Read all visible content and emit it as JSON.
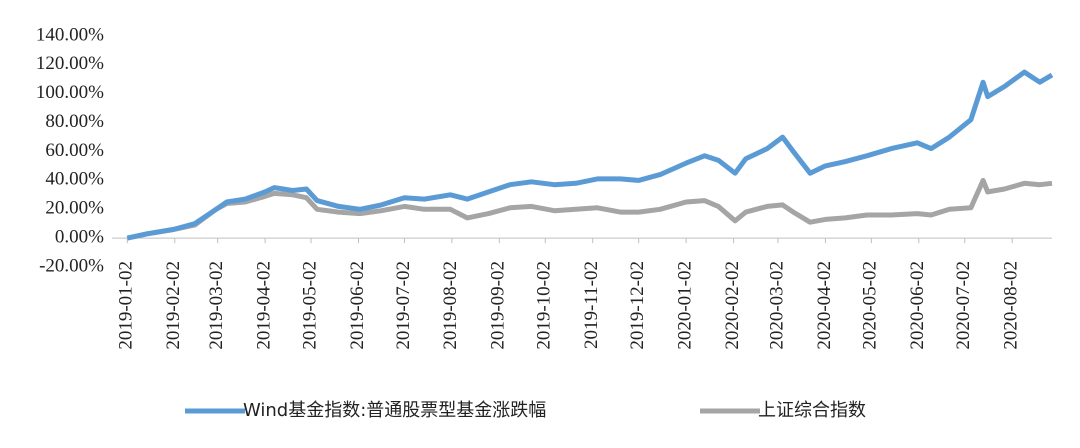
{
  "chart_data": {
    "type": "line",
    "x": [
      "2019-01-02",
      "2019-01-15",
      "2019-02-01",
      "2019-02-15",
      "2019-03-01",
      "2019-03-08",
      "2019-03-20",
      "2019-04-02",
      "2019-04-08",
      "2019-04-20",
      "2019-04-29",
      "2019-05-06",
      "2019-05-20",
      "2019-06-03",
      "2019-06-17",
      "2019-07-02",
      "2019-07-15",
      "2019-08-01",
      "2019-08-12",
      "2019-08-26",
      "2019-09-09",
      "2019-09-23",
      "2019-10-08",
      "2019-10-22",
      "2019-11-05",
      "2019-11-20",
      "2019-12-02",
      "2019-12-16",
      "2020-01-02",
      "2020-01-14",
      "2020-01-23",
      "2020-02-03",
      "2020-02-10",
      "2020-02-24",
      "2020-03-05",
      "2020-03-12",
      "2020-03-23",
      "2020-04-02",
      "2020-04-15",
      "2020-04-29",
      "2020-05-15",
      "2020-06-01",
      "2020-06-10",
      "2020-06-22",
      "2020-07-06",
      "2020-07-14",
      "2020-07-17",
      "2020-07-28",
      "2020-08-10",
      "2020-08-20",
      "2020-08-28"
    ],
    "series": [
      {
        "name": "Wind基金指数:普通股票型基金涨跌幅",
        "color": "#5b9bd5",
        "values": [
          0,
          3,
          6,
          10,
          20,
          25,
          27,
          32,
          35,
          33,
          34,
          26,
          22,
          20,
          23,
          28,
          27,
          30,
          27,
          32,
          37,
          39,
          37,
          38,
          41,
          41,
          40,
          44,
          52,
          57,
          54,
          45,
          55,
          62,
          70,
          60,
          45,
          50,
          53,
          57,
          62,
          66,
          62,
          70,
          82,
          108,
          98,
          105,
          115,
          108,
          113
        ]
      },
      {
        "name": "上证综合指数",
        "color": "#a5a5a5",
        "values": [
          0,
          3,
          6,
          9,
          20,
          24,
          25,
          29,
          31,
          30,
          28,
          20,
          18,
          17,
          19,
          22,
          20,
          20,
          14,
          17,
          21,
          22,
          19,
          20,
          21,
          18,
          18,
          20,
          25,
          26,
          22,
          12,
          18,
          22,
          23,
          18,
          11,
          13,
          14,
          16,
          16,
          17,
          16,
          20,
          21,
          40,
          32,
          34,
          38,
          37,
          38
        ]
      }
    ],
    "xlim": [
      "2018-12-23",
      "2020-08-28"
    ],
    "xticks": [
      "2019-01-02",
      "2019-02-02",
      "2019-03-02",
      "2019-04-02",
      "2019-05-02",
      "2019-06-02",
      "2019-07-02",
      "2019-08-02",
      "2019-09-02",
      "2019-10-02",
      "2019-11-02",
      "2019-12-02",
      "2020-01-02",
      "2020-02-02",
      "2020-03-02",
      "2020-04-02",
      "2020-05-02",
      "2020-06-02",
      "2020-07-02",
      "2020-08-02"
    ],
    "ylim": [
      -20,
      140
    ],
    "yticks": [
      {
        "value": -20,
        "label": "-20.00%"
      },
      {
        "value": 0,
        "label": "0.00%"
      },
      {
        "value": 20,
        "label": "20.00%"
      },
      {
        "value": 40,
        "label": "40.00%"
      },
      {
        "value": 60,
        "label": "60.00%"
      },
      {
        "value": 80,
        "label": "80.00%"
      },
      {
        "value": 100,
        "label": "100.00%"
      },
      {
        "value": 120,
        "label": "120.00%"
      },
      {
        "value": 140,
        "label": "140.00%"
      }
    ],
    "legend": "bottom"
  }
}
